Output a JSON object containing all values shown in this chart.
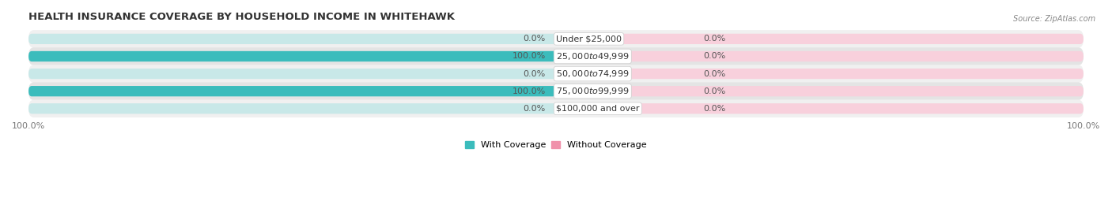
{
  "title": "HEALTH INSURANCE COVERAGE BY HOUSEHOLD INCOME IN WHITEHAWK",
  "source": "Source: ZipAtlas.com",
  "categories": [
    "Under $25,000",
    "$25,000 to $49,999",
    "$50,000 to $74,999",
    "$75,000 to $99,999",
    "$100,000 and over"
  ],
  "with_coverage": [
    0.0,
    100.0,
    0.0,
    100.0,
    0.0
  ],
  "without_coverage": [
    0.0,
    0.0,
    0.0,
    0.0,
    0.0
  ],
  "color_with": "#3bbcbc",
  "color_without": "#f090aa",
  "color_with_bg": "#c8e8e8",
  "color_without_bg": "#f8d0dc",
  "row_bg": [
    "#f0f0f0",
    "#e4e4e4"
  ],
  "bar_bg": "#d8d8d8",
  "title_fontsize": 9.5,
  "label_fontsize": 8,
  "source_fontsize": 7,
  "legend_fontsize": 8
}
